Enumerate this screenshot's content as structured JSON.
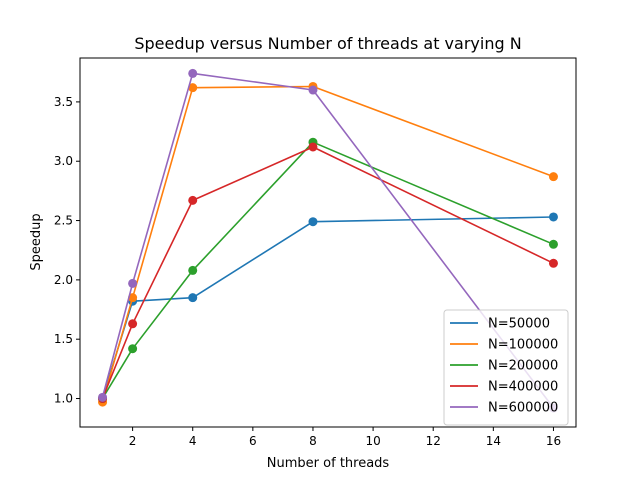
{
  "chart_data": {
    "type": "line",
    "title": "Speedup versus Number of threads at varying N",
    "xlabel": "Number of threads",
    "ylabel": "Speedup",
    "xlim": [
      0.25,
      16.75
    ],
    "ylim": [
      0.76,
      3.87
    ],
    "xticks": [
      "2",
      "4",
      "6",
      "8",
      "10",
      "12",
      "14",
      "16"
    ],
    "yticks": [
      "1.0",
      "1.5",
      "2.0",
      "2.5",
      "3.0",
      "3.5"
    ],
    "grid": false,
    "legend_position": "lower-right",
    "x": [
      1,
      2,
      4,
      8,
      16
    ],
    "series": [
      {
        "name": "N=50000",
        "color": "#1f77b4",
        "values": [
          1.0,
          1.82,
          1.85,
          2.49,
          2.53
        ]
      },
      {
        "name": "N=100000",
        "color": "#ff7f0e",
        "values": [
          0.97,
          1.85,
          3.62,
          3.63,
          2.87
        ]
      },
      {
        "name": "N=200000",
        "color": "#2ca02c",
        "values": [
          1.0,
          1.42,
          2.08,
          3.16,
          2.3
        ]
      },
      {
        "name": "N=400000",
        "color": "#d62728",
        "values": [
          1.0,
          1.63,
          2.67,
          3.12,
          2.14
        ]
      },
      {
        "name": "N=600000",
        "color": "#9467bd",
        "values": [
          1.01,
          1.97,
          3.74,
          3.6,
          0.92
        ]
      }
    ]
  }
}
